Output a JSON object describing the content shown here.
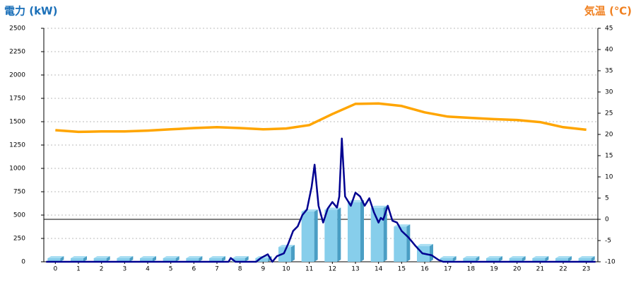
{
  "chart_data": {
    "type": "bar",
    "y_label": "電力 (kW)",
    "y2_label": "気温 (℃)",
    "categories": [
      "0",
      "1",
      "2",
      "3",
      "4",
      "5",
      "6",
      "7",
      "8",
      "9",
      "10",
      "11",
      "12",
      "13",
      "14",
      "15",
      "16",
      "17",
      "18",
      "19",
      "20",
      "21",
      "22",
      "23"
    ],
    "ylim": [
      0,
      2500
    ],
    "yticks": [
      0,
      250,
      500,
      750,
      1000,
      1250,
      1500,
      1750,
      2000,
      2250,
      2500
    ],
    "y2lim": [
      -10,
      45
    ],
    "y2ticks": [
      -10,
      -5,
      0,
      5,
      10,
      15,
      20,
      25,
      30,
      35,
      40,
      45
    ],
    "grid": true,
    "series": [
      {
        "type": "bar",
        "color": "#87ceeb",
        "values": [
          0,
          0,
          0,
          0,
          0,
          0,
          0,
          0,
          0,
          0,
          120,
          500,
          520,
          600,
          540,
          340,
          130,
          0,
          0,
          0,
          0,
          0,
          0,
          0
        ]
      },
      {
        "type": "line",
        "color": "#000090",
        "x": [
          -0.4,
          7.5,
          7.6,
          7.8,
          8.7,
          8.9,
          9.2,
          9.4,
          9.6,
          9.9,
          10.1,
          10.3,
          10.5,
          10.7,
          10.9,
          11.1,
          11.23,
          11.4,
          11.6,
          11.8,
          12.0,
          12.2,
          12.3,
          12.41,
          12.55,
          12.8,
          13.0,
          13.2,
          13.4,
          13.6,
          13.8,
          14.0,
          14.1,
          14.2,
          14.4,
          14.6,
          14.8,
          15.0,
          15.3,
          15.6,
          15.9,
          16.3,
          16.6,
          16.8,
          23.4
        ],
        "values": [
          0,
          0,
          40,
          0,
          0,
          40,
          80,
          0,
          60,
          90,
          200,
          330,
          380,
          500,
          560,
          800,
          1040,
          600,
          420,
          570,
          640,
          580,
          700,
          1320,
          700,
          600,
          740,
          700,
          600,
          680,
          530,
          420,
          470,
          450,
          600,
          440,
          420,
          330,
          260,
          170,
          90,
          70,
          20,
          0,
          0
        ]
      },
      {
        "type": "line",
        "axis": "y2",
        "color": "#ffa500",
        "values": [
          21,
          20.6,
          20.7,
          20.7,
          20.9,
          21.2,
          21.5,
          21.7,
          21.5,
          21.2,
          21.4,
          22.2,
          24.8,
          27.2,
          27.3,
          26.7,
          25.2,
          24.2,
          23.9,
          23.6,
          23.4,
          22.9,
          21.7,
          21.1
        ]
      }
    ]
  }
}
